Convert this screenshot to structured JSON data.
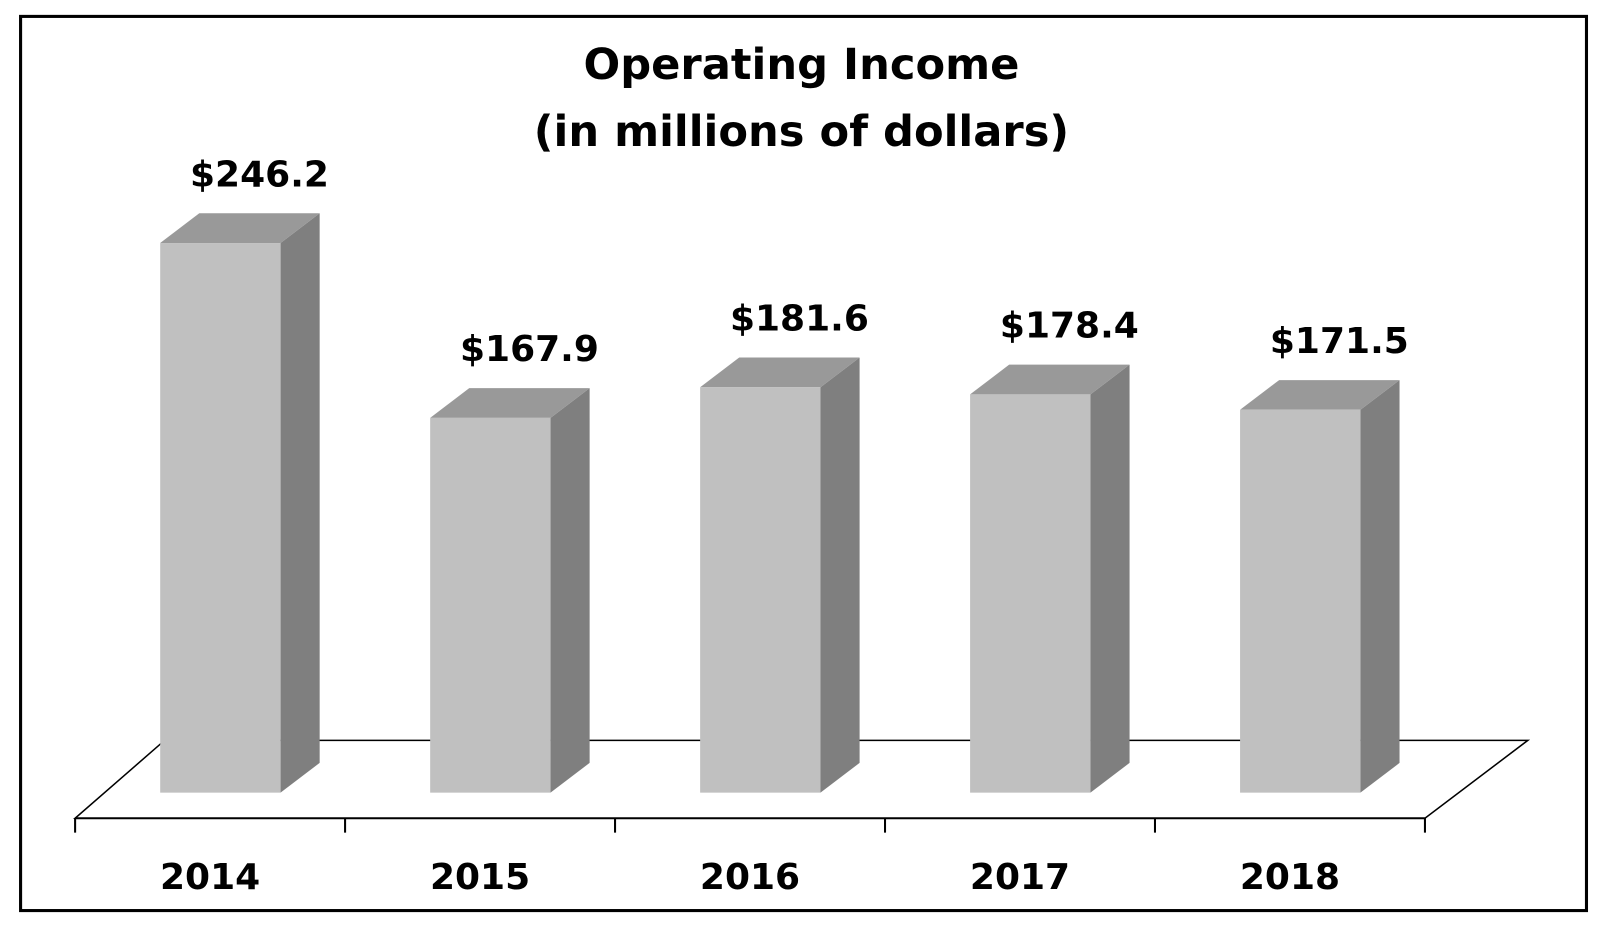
{
  "chart_data": {
    "type": "bar3d",
    "title": "Operating Income",
    "subtitle": "(in millions of dollars)",
    "categories": [
      "2014",
      "2015",
      "2016",
      "2017",
      "2018"
    ],
    "values": [
      246.2,
      167.9,
      181.6,
      178.4,
      171.5
    ],
    "value_labels": [
      "$246.2",
      "$167.9",
      "$181.6",
      "$178.4",
      "$171.5"
    ],
    "color": "#c0c0c0"
  }
}
